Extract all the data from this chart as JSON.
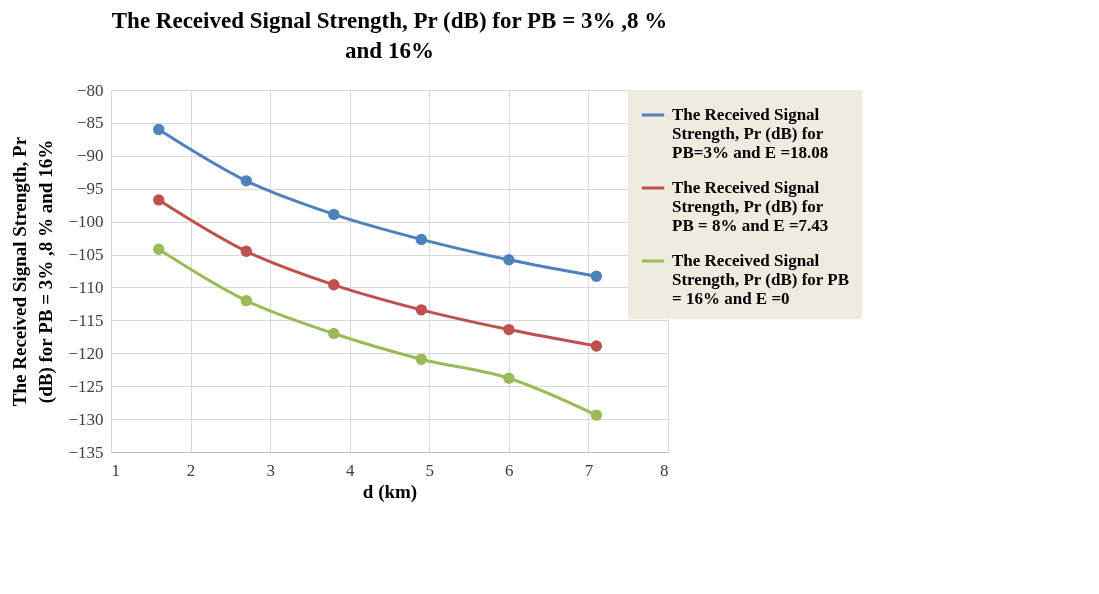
{
  "chart_data": {
    "type": "line",
    "title": "The Received Signal Strength, Pr (dB) for PB = 3% ,8 % and 16%",
    "xlabel": "d (km)",
    "ylabel": "The Received Signal Strength, Pr (dB) for PB = 3% ,8 % and 16%",
    "x": [
      1.6,
      2.7,
      3.8,
      4.9,
      6.0,
      7.1
    ],
    "series": [
      {
        "name": "The Received Signal Strength,  Pr (dB) for PB=3%  and E =18.08",
        "color": "#4f81bd",
        "values": [
          -86,
          -93.8,
          -98.9,
          -102.7,
          -105.8,
          -108.3
        ]
      },
      {
        "name": " The Received Signal Strength,  Pr (dB) for PB = 8% and E =7.43",
        "color": "#c0504d",
        "values": [
          -96.7,
          -104.5,
          -109.6,
          -113.4,
          -116.4,
          -118.9
        ]
      },
      {
        "name": "The Received Signal Strength, Pr (dB) for PB = 16% and E =0",
        "color": "#9bbb59",
        "values": [
          -104.2,
          -112,
          -117,
          -120.9,
          -123.8,
          -129.4
        ]
      }
    ],
    "xlim": [
      1,
      8
    ],
    "xticks": [
      1,
      2,
      3,
      4,
      5,
      6,
      7,
      8
    ],
    "ylim": [
      -135,
      -80
    ],
    "yticks": [
      -135,
      -130,
      -125,
      -120,
      -115,
      -110,
      -105,
      -100,
      -95,
      -90,
      -85,
      -80
    ],
    "grid": true,
    "legend": "right",
    "marker": "circle",
    "line_style": "solid"
  }
}
